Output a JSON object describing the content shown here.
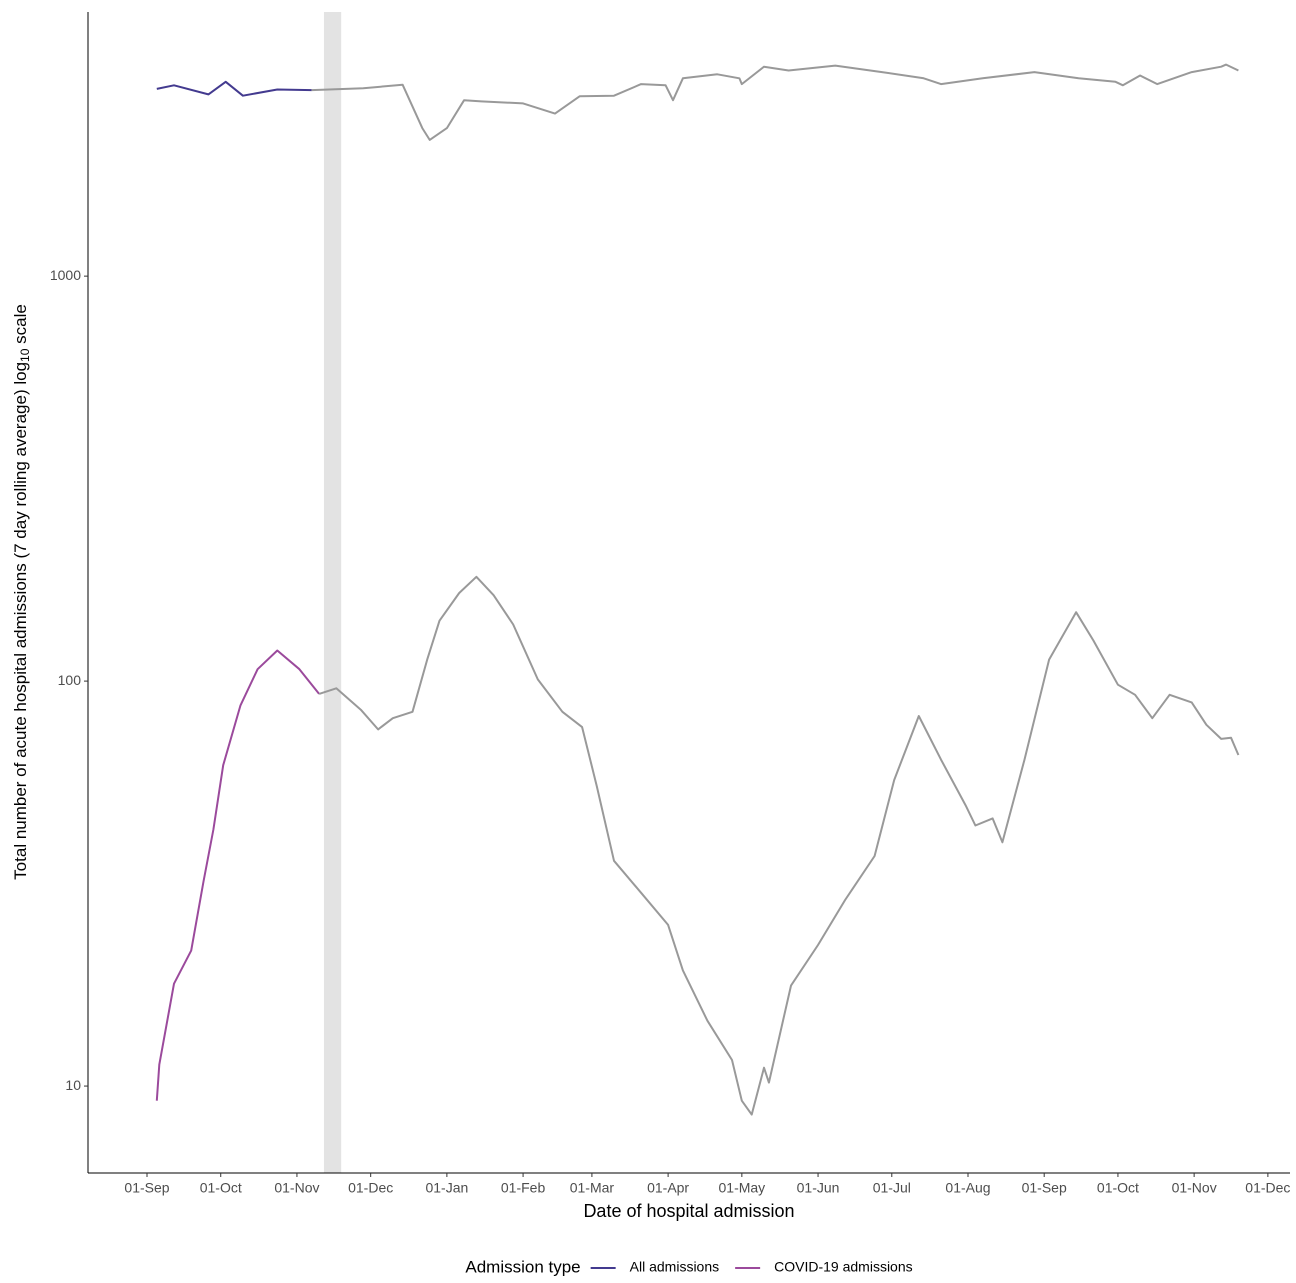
{
  "chart_data": {
    "type": "line",
    "xlabel": "Date of hospital admission",
    "ylabel": [
      "Total number of acute hospital admissions (7 day rolling average) log",
      "10",
      " scale"
    ],
    "log_y": true,
    "grid": false,
    "legend_position": "bottom",
    "legend_title": "Admission type",
    "xlim": [
      "08-Aug",
      "10-Dec"
    ],
    "xticks": [
      "01-Sep",
      "01-Oct",
      "01-Nov",
      "01-Dec",
      "01-Jan",
      "01-Feb",
      "01-Mar",
      "01-Apr",
      "01-May",
      "01-Jun",
      "01-Jul",
      "01-Aug",
      "01-Sep",
      "01-Oct",
      "01-Nov",
      "01-Dec"
    ],
    "ylim": [
      6.1,
      4490
    ],
    "yticks": [
      10,
      100,
      1000
    ],
    "shaded_region": [
      "12-Nov",
      "19-Nov"
    ],
    "shaded_color": "#e3e3e3",
    "provisional_color": "#999999",
    "series": [
      {
        "name": "All admissions",
        "color": "#433a8f",
        "x": [
          "05-Sep",
          "12-Sep",
          "26-Sep",
          "03-Oct",
          "10-Oct",
          "24-Oct",
          "07-Nov",
          "28-Nov",
          "14-Dec",
          "22-Dec",
          "25-Dec",
          "01-Jan",
          "08-Jan",
          "15-Jan",
          "01-Feb",
          "14-Feb",
          "24-Feb",
          "10-Mar",
          "21-Mar",
          "31-Mar",
          "03-Apr",
          "07-Apr",
          "21-Apr",
          "30-Apr",
          "01-May",
          "10-May",
          "20-May",
          "08-Jun",
          "27-Jun",
          "14-Jul",
          "21-Jul",
          "07-Aug",
          "28-Aug",
          "15-Sep",
          "30-Sep",
          "03-Oct",
          "10-Oct",
          "17-Oct",
          "31-Oct",
          "12-Nov",
          "14-Nov",
          "19-Nov"
        ],
        "values": [
          2900,
          2960,
          2810,
          3020,
          2790,
          2890,
          2880,
          2910,
          2970,
          2320,
          2170,
          2320,
          2720,
          2700,
          2670,
          2520,
          2780,
          2790,
          2980,
          2960,
          2720,
          3080,
          3150,
          3080,
          2980,
          3290,
          3220,
          3310,
          3190,
          3080,
          2980,
          3080,
          3190,
          3080,
          3020,
          2960,
          3130,
          2980,
          3190,
          3290,
          3330,
          3220
        ]
      },
      {
        "name": "COVID-19 admissions",
        "color": "#9b4a9c",
        "x": [
          "05-Sep",
          "06-Sep",
          "12-Sep",
          "19-Sep",
          "24-Sep",
          "28-Sep",
          "02-Oct",
          "09-Oct",
          "16-Oct",
          "24-Oct",
          "02-Nov",
          "10-Nov",
          "17-Nov",
          "27-Nov",
          "04-Dec",
          "10-Dec",
          "18-Dec",
          "24-Dec",
          "29-Dec",
          "06-Jan",
          "13-Jan",
          "20-Jan",
          "28-Jan",
          "07-Feb",
          "17-Feb",
          "25-Feb",
          "03-Mar",
          "10-Mar",
          "21-Mar",
          "01-Apr",
          "07-Apr",
          "17-Apr",
          "27-Apr",
          "01-May",
          "05-May",
          "10-May",
          "12-May",
          "21-May",
          "01-Jun",
          "12-Jun",
          "24-Jun",
          "02-Jul",
          "12-Jul",
          "21-Jul",
          "31-Jul",
          "04-Aug",
          "11-Aug",
          "15-Aug",
          "24-Aug",
          "03-Sep",
          "14-Sep",
          "21-Sep",
          "01-Oct",
          "08-Oct",
          "15-Oct",
          "22-Oct",
          "31-Oct",
          "06-Nov",
          "12-Nov",
          "16-Nov",
          "19-Nov"
        ],
        "values": [
          9.2,
          11.3,
          17.9,
          21.6,
          32,
          43,
          62,
          87,
          107,
          119,
          107,
          93,
          96,
          85,
          76,
          81,
          84,
          113,
          141,
          165,
          181,
          163,
          138,
          101,
          84,
          77,
          55,
          36,
          30,
          25,
          19.3,
          14.5,
          11.6,
          9.2,
          8.5,
          11.1,
          10.2,
          17.7,
          22.3,
          28.8,
          37,
          57,
          82,
          64,
          49.4,
          44,
          45.8,
          40,
          64,
          113,
          148,
          126,
          98,
          92.5,
          81,
          92.5,
          88.6,
          78,
          72,
          72.5,
          65.7
        ]
      }
    ]
  }
}
